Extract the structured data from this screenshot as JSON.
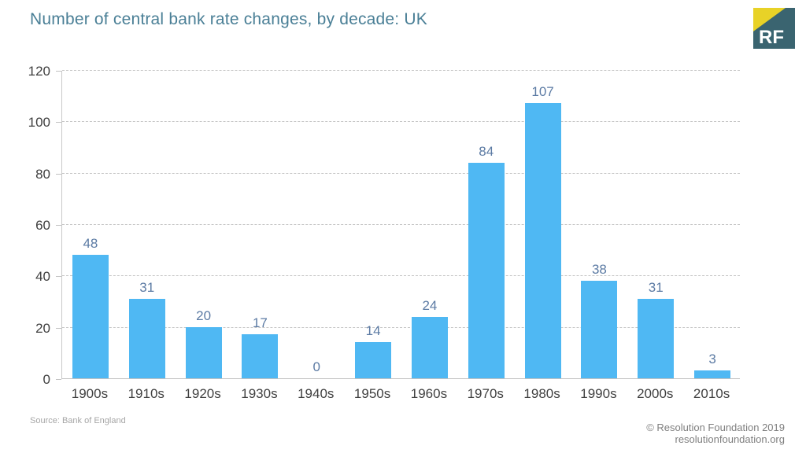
{
  "header": {
    "title": "Number of central bank rate changes, by decade: UK",
    "logo_text": "RF"
  },
  "footer": {
    "source": "Source: Bank of England",
    "copyright": "© Resolution Foundation 2019",
    "website": "resolutionfoundation.org"
  },
  "colors": {
    "bar": "#4FB8F3",
    "title": "#4A7F96",
    "data_label": "#5C7BA4",
    "axis_text": "#404040",
    "grid": "#C6C6C6",
    "logo_teal": "#3A6470",
    "logo_yellow": "#E8D227",
    "source_text": "#A6A6A6",
    "credit_text": "#7F7F7F"
  },
  "chart_data": {
    "type": "bar",
    "title": "Number of central bank rate changes, by decade: UK",
    "categories": [
      "1900s",
      "1910s",
      "1920s",
      "1930s",
      "1940s",
      "1950s",
      "1960s",
      "1970s",
      "1980s",
      "1990s",
      "2000s",
      "2010s"
    ],
    "values": [
      48,
      31,
      20,
      17,
      0,
      14,
      24,
      84,
      107,
      38,
      31,
      3
    ],
    "xlabel": "",
    "ylabel": "",
    "ylim": [
      0,
      120
    ],
    "ytick_step": 20,
    "yticks": [
      0,
      20,
      40,
      60,
      80,
      100,
      120
    ],
    "grid": "horizontal-dashed",
    "legend": "none",
    "data_labels": true,
    "bar_color": "#4FB8F3",
    "source": "Bank of England"
  }
}
